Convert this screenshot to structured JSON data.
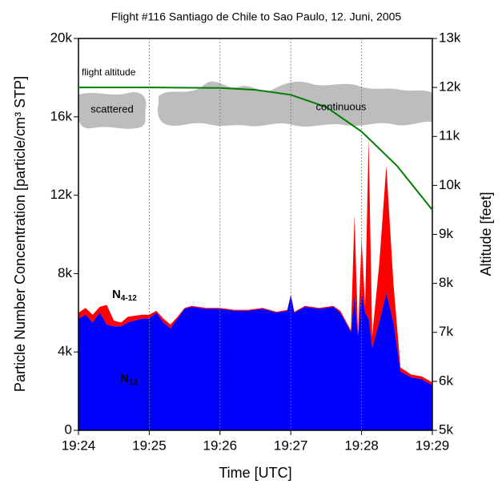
{
  "chart_data": {
    "type": "area",
    "title": "Flight #116 Santiago de Chile to Sao Paulo, 12. Juni, 2005",
    "x_label": "Time  [UTC]",
    "y_label": "Particle Number Concentration  [particle/cm³ STP]",
    "y2_label": "Altitude [feet]",
    "stacked": true,
    "grid": "x",
    "annotations": [
      "scattered",
      "continuous"
    ],
    "x": [
      1164.0,
      1164.1,
      1164.2,
      1164.3,
      1164.4,
      1164.5,
      1164.6,
      1164.7,
      1164.8,
      1164.9,
      1165.0,
      1165.1,
      1165.2,
      1165.3,
      1165.4,
      1165.5,
      1165.6,
      1165.8,
      1166.0,
      1166.2,
      1166.4,
      1166.6,
      1166.8,
      1166.95,
      1167.0,
      1167.05,
      1167.2,
      1167.4,
      1167.6,
      1167.7,
      1167.85,
      1167.9,
      1167.95,
      1168.0,
      1168.05,
      1168.1,
      1168.15,
      1168.25,
      1168.35,
      1168.45,
      1168.55,
      1168.7,
      1168.85,
      1169.0
    ],
    "series": [
      {
        "name": "N12",
        "color": "#0000ff",
        "values": [
          5700,
          5900,
          5500,
          6000,
          5400,
          5300,
          5300,
          5500,
          5600,
          5700,
          5700,
          6000,
          5500,
          5200,
          5700,
          6200,
          6300,
          6200,
          6200,
          6100,
          6100,
          6200,
          6000,
          6100,
          6900,
          6000,
          6300,
          6200,
          6300,
          6000,
          5000,
          6800,
          4800,
          7000,
          6000,
          5700,
          4200,
          5500,
          7000,
          5500,
          3000,
          2700,
          2600,
          2300
        ]
      },
      {
        "name": "N4-12",
        "color": "#ff0000",
        "values": [
          300,
          350,
          400,
          300,
          1000,
          300,
          200,
          300,
          250,
          200,
          200,
          100,
          200,
          200,
          100,
          50,
          50,
          50,
          50,
          50,
          50,
          50,
          50,
          50,
          50,
          50,
          50,
          50,
          50,
          100,
          100,
          4200,
          100,
          2800,
          300,
          9200,
          600,
          3000,
          6500,
          2000,
          200,
          150,
          150,
          150
        ]
      },
      {
        "name": "flight altitude",
        "color": "#008000",
        "axis": "y2",
        "x": [
          1164.0,
          1165.0,
          1166.0,
          1166.5,
          1167.0,
          1167.5,
          1168.0,
          1168.5,
          1169.0
        ],
        "values": [
          12000,
          12000,
          11990,
          11950,
          11850,
          11600,
          11100,
          10400,
          9500
        ]
      }
    ],
    "xlim": [
      1164,
      1169
    ],
    "xticks": [
      {
        "value": 1164,
        "label": "19:24"
      },
      {
        "value": 1165,
        "label": "19:25"
      },
      {
        "value": 1166,
        "label": "19:26"
      },
      {
        "value": 1167,
        "label": "19:27"
      },
      {
        "value": 1168,
        "label": "19:28"
      },
      {
        "value": 1169,
        "label": "19:29"
      }
    ],
    "ylim": [
      0,
      20000
    ],
    "yticks": [
      0,
      {
        "value": 4000,
        "label": "4k"
      },
      {
        "value": 8000,
        "label": "8k"
      },
      {
        "value": 12000,
        "label": "12k"
      },
      {
        "value": 16000,
        "label": "16k"
      },
      {
        "value": 20000,
        "label": "20k"
      }
    ],
    "y2lim": [
      5000,
      13000
    ],
    "y2ticks": [
      {
        "value": 5000,
        "label": "5k"
      },
      {
        "value": 6000,
        "label": "6k"
      },
      {
        "value": 7000,
        "label": "7k"
      },
      {
        "value": 8000,
        "label": "8k"
      },
      {
        "value": 9000,
        "label": "9k"
      },
      {
        "value": 10000,
        "label": "10k"
      },
      {
        "value": 11000,
        "label": "11k"
      },
      {
        "value": 12000,
        "label": "12k"
      },
      {
        "value": 13000,
        "label": "13k"
      }
    ]
  }
}
